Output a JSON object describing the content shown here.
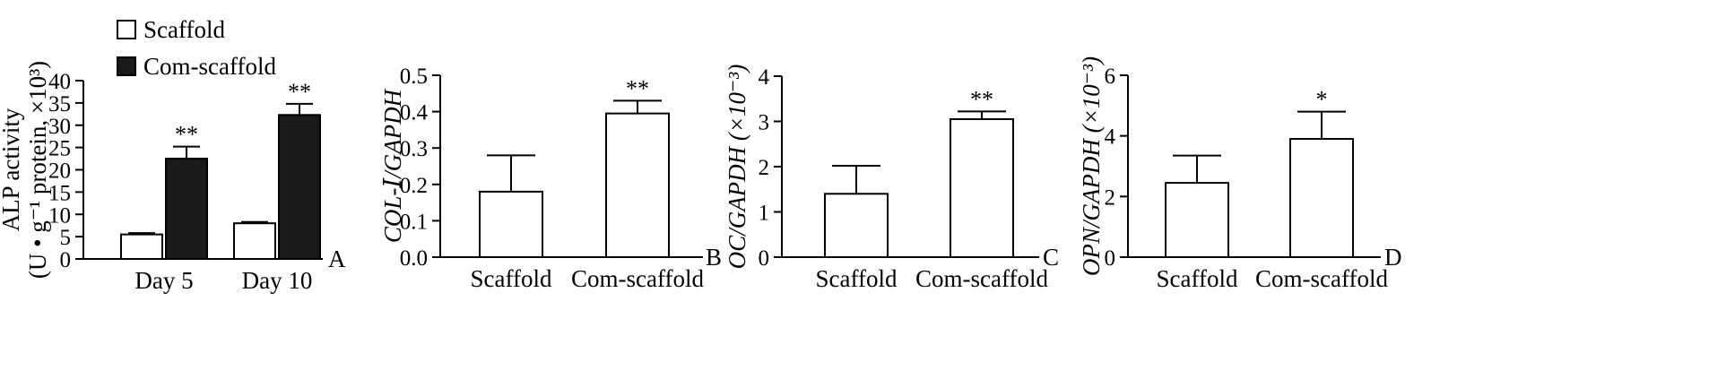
{
  "colors": {
    "scaffold": "#ffffff",
    "com_scaffold": "#1a1a1a",
    "axis": "#000000"
  },
  "chart_data": [
    {
      "type": "bar",
      "panel": "A",
      "ylabel_line1": "ALP activity",
      "ylabel_line2": "(U • g⁻¹ protein, ×10³)",
      "ylim": [
        0,
        40
      ],
      "yticks": [
        "0",
        "5",
        "10",
        "15",
        "20",
        "25",
        "30",
        "35",
        "40"
      ],
      "categories": [
        "Day 5",
        "Day 10"
      ],
      "series": [
        {
          "name": "Scaffold",
          "values": [
            5.5,
            8
          ],
          "errors": [
            0.3,
            0.3
          ],
          "sig": [
            "",
            ""
          ]
        },
        {
          "name": "Com-scaffold",
          "values": [
            22.5,
            32.3
          ],
          "errors": [
            2.7,
            2.5
          ],
          "sig": [
            "**",
            "**"
          ]
        }
      ],
      "legend": "top-left"
    },
    {
      "type": "bar",
      "panel": "B",
      "ylabel": "COL-Ⅰ/GAPDH",
      "ylim": [
        0,
        0.5
      ],
      "yticks": [
        "0.0",
        "0.1",
        "0.2",
        "0.3",
        "0.4",
        "0.5"
      ],
      "categories": [
        "Scaffold",
        "Com-scaffold"
      ],
      "values": [
        0.18,
        0.395
      ],
      "errors": [
        0.1,
        0.035
      ],
      "sig": [
        "",
        "**"
      ]
    },
    {
      "type": "bar",
      "panel": "C",
      "ylabel": "OC/GAPDH (×10⁻³)",
      "ylim": [
        0,
        4
      ],
      "yticks": [
        "0",
        "1",
        "2",
        "3",
        "4"
      ],
      "categories": [
        "Scaffold",
        "Com-scaffold"
      ],
      "values": [
        1.4,
        3.05
      ],
      "errors": [
        0.62,
        0.17
      ],
      "sig": [
        "",
        "**"
      ]
    },
    {
      "type": "bar",
      "panel": "D",
      "ylabel": "OPN/GAPDH (×10⁻³)",
      "ylim": [
        0,
        6
      ],
      "yticks": [
        "0",
        "2",
        "4",
        "6"
      ],
      "categories": [
        "Scaffold",
        "Com-scaffold"
      ],
      "values": [
        2.45,
        3.9
      ],
      "errors": [
        0.9,
        0.9
      ],
      "sig": [
        "",
        "*"
      ]
    }
  ]
}
